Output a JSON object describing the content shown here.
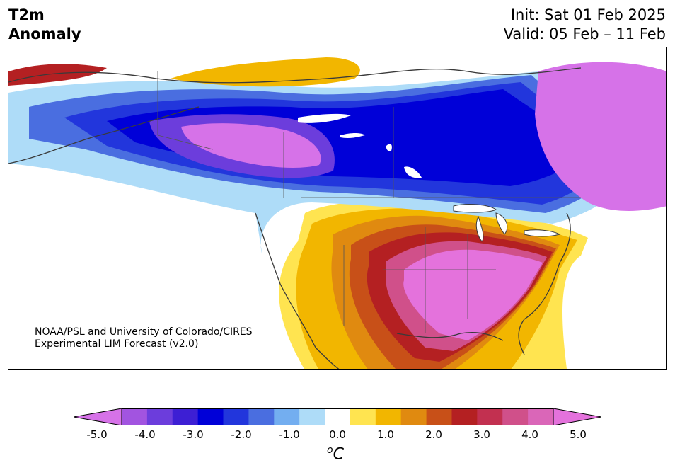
{
  "header": {
    "title_line1": "T2m",
    "title_line2": "Anomaly",
    "init": "Init: Sat 01 Feb 2025",
    "valid": "Valid: 05 Feb – 11 Feb"
  },
  "map": {
    "region": "North America",
    "variable": "2-meter temperature anomaly",
    "credit_line1": "NOAA/PSL and University of Colorado/CIRES",
    "credit_line2": "Experimental LIM Forecast (v2.0)"
  },
  "colorbar": {
    "unit": "C",
    "unit_prefix": "o",
    "tick_labels": [
      "-5.0",
      "-4.0",
      "-3.0",
      "-2.0",
      "-1.0",
      "0.0",
      "1.0",
      "2.0",
      "3.0",
      "4.0",
      "5.0"
    ],
    "levels": [
      -5.0,
      -4.5,
      -4.0,
      -3.5,
      -3.0,
      -2.5,
      -2.0,
      -1.5,
      -1.0,
      -0.5,
      0.5,
      1.0,
      1.5,
      2.0,
      2.5,
      3.0,
      3.5,
      4.0,
      4.5,
      5.0
    ],
    "colors": [
      "#d672e8",
      "#a254e0",
      "#6c3ddc",
      "#3d1fd4",
      "#0000d8",
      "#2236dc",
      "#4a6ee0",
      "#73aef0",
      "#aedcf8",
      "#ffffff",
      "#ffe450",
      "#f2b600",
      "#e08a10",
      "#c85018",
      "#b42022",
      "#c23050",
      "#d0508a",
      "#da66b8",
      "#e472dc"
    ]
  }
}
